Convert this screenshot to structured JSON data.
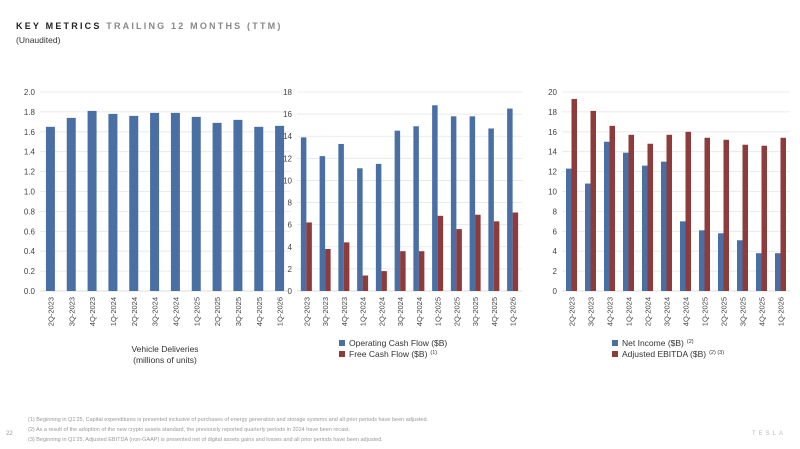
{
  "header": {
    "title_bold": "KEY METRICS",
    "title_light": "TRAILING 12 MONTHS (TTM)",
    "subtitle": "(Unaudited)"
  },
  "colors": {
    "blue": "#4a6fa5",
    "red": "#8e3b3b",
    "grid": "#e6e6e6"
  },
  "chart_data": [
    {
      "type": "bar",
      "title": "Vehicle Deliveries",
      "xlabel": "Vehicle Deliveries (millions of units)",
      "xlabel_lines": [
        "Vehicle Deliveries",
        "(millions of units)"
      ],
      "categories": [
        "2Q-2023",
        "3Q-2023",
        "4Q-2023",
        "1Q-2024",
        "2Q-2024",
        "3Q-2024",
        "4Q-2024",
        "1Q-2025",
        "2Q-2025",
        "3Q-2025",
        "4Q-2025",
        "1Q-2026"
      ],
      "ylim": [
        0,
        2.0
      ],
      "yticks": [
        "0.0",
        "0.2",
        "0.4",
        "0.6",
        "0.8",
        "1.0",
        "1.2",
        "1.4",
        "1.6",
        "1.8",
        "2.0"
      ],
      "grid": true,
      "series": [
        {
          "name": "Vehicle Deliveries",
          "color": "blue",
          "values": [
            1.65,
            1.74,
            1.81,
            1.78,
            1.76,
            1.79,
            1.79,
            1.75,
            1.69,
            1.72,
            1.65,
            1.66
          ]
        }
      ]
    },
    {
      "type": "bar",
      "categories": [
        "2Q-2023",
        "3Q-2023",
        "4Q-2023",
        "1Q-2024",
        "2Q-2024",
        "3Q-2024",
        "4Q-2024",
        "1Q-2025",
        "2Q-2025",
        "3Q-2025",
        "4Q-2025",
        "1Q-2026"
      ],
      "ylim": [
        0,
        18
      ],
      "yticks": [
        "0",
        "2",
        "4",
        "6",
        "8",
        "10",
        "12",
        "14",
        "16",
        "18"
      ],
      "grid": true,
      "legend": "bottom",
      "series": [
        {
          "name": "Operating Cash Flow ($B)",
          "sup": "",
          "color": "blue",
          "values": [
            13.9,
            12.2,
            13.3,
            11.1,
            11.5,
            14.5,
            14.9,
            16.8,
            15.8,
            15.8,
            14.7,
            16.5
          ]
        },
        {
          "name": "Free Cash Flow ($B)",
          "sup": "(1)",
          "color": "red",
          "values": [
            6.2,
            3.8,
            4.4,
            1.4,
            1.8,
            3.6,
            3.6,
            6.8,
            5.6,
            6.9,
            6.3,
            7.1
          ]
        }
      ]
    },
    {
      "type": "bar",
      "categories": [
        "2Q-2023",
        "3Q-2023",
        "4Q-2023",
        "1Q-2024",
        "2Q-2024",
        "3Q-2024",
        "4Q-2024",
        "1Q-2025",
        "2Q-2025",
        "3Q-2025",
        "4Q-2025",
        "1Q-2026"
      ],
      "ylim": [
        0,
        20
      ],
      "yticks": [
        "0",
        "2",
        "4",
        "6",
        "8",
        "10",
        "12",
        "14",
        "16",
        "18",
        "20"
      ],
      "grid": true,
      "legend": "bottom",
      "series": [
        {
          "name": "Net Income ($B)",
          "sup": "(2)",
          "color": "blue",
          "values": [
            12.3,
            10.8,
            15.0,
            13.9,
            12.6,
            13.0,
            7.0,
            6.1,
            5.8,
            5.1,
            3.8,
            3.8
          ]
        },
        {
          "name": "Adjusted EBITDA ($B)",
          "sup": "(2) (3)",
          "color": "red",
          "values": [
            19.3,
            18.1,
            16.6,
            15.7,
            14.8,
            15.7,
            16.0,
            15.4,
            15.2,
            14.7,
            14.6,
            15.4
          ]
        }
      ]
    }
  ],
  "footnotes": [
    "(1) Beginning in Q1'25, Capital expenditures is presented inclusive of purchases of energy generation and storage systems and all prior periods have been adjusted.",
    "(2) As a result of the adoption of the new crypto assets standard, the previously reported quarterly periods in 2024 have been recast.",
    "(3) Beginning in Q1'25, Adjusted EBITDA (non-GAAP) is presented net of digital assets gains and losses and all prior periods have been adjusted."
  ],
  "page_number": "22",
  "logo": "TESLA"
}
